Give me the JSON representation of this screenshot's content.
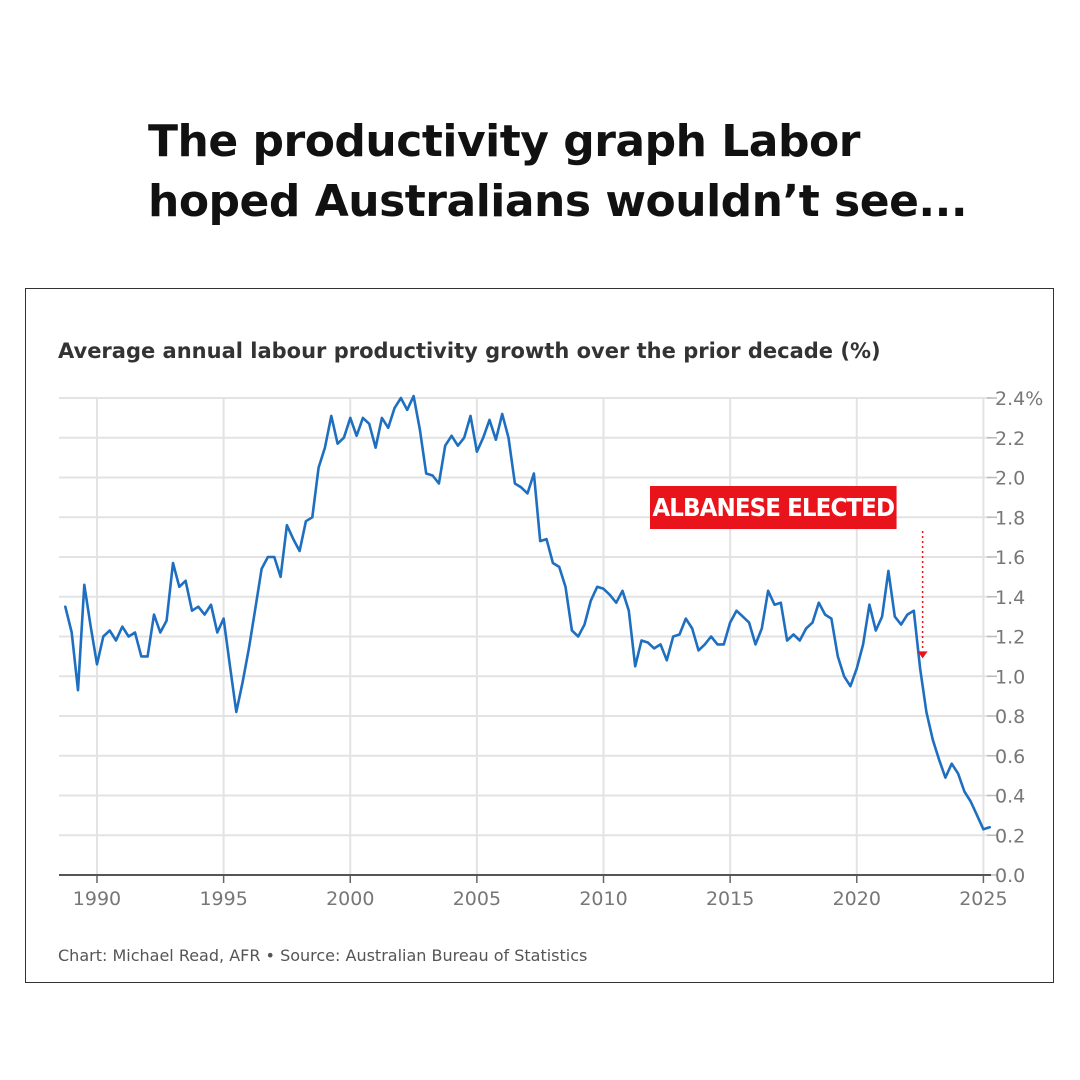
{
  "headline": {
    "line1": "The productivity graph Labor",
    "line2": "hoped Australians wouldn’t see..."
  },
  "colors": {
    "line": "#1f6fc0",
    "annotation": "#e8131b",
    "grid": "#e3e3e3",
    "tick_text": "#777777"
  },
  "chart_data": {
    "type": "line",
    "title": "Average annual labour productivity growth over the prior decade (%)",
    "source": "Chart: Michael Read, AFR • Source: Australian Bureau of Statistics",
    "xlim": [
      1988.5,
      2025.3
    ],
    "ylim": [
      0,
      2.4
    ],
    "x_ticks": [
      1990,
      1995,
      2000,
      2005,
      2010,
      2015,
      2020,
      2025
    ],
    "y_ticks": [
      0,
      0.2,
      0.4,
      0.6,
      0.8,
      1.0,
      1.2,
      1.4,
      1.6,
      1.8,
      2.0,
      2.2,
      2.4
    ],
    "y_tick_labels": [
      "0.0",
      "0.2",
      "0.4",
      "0.6",
      "0.8",
      "1.0",
      "1.2",
      "1.4",
      "1.6",
      "1.8",
      "2.0",
      "2.2",
      "2.4%"
    ],
    "grid": true,
    "y_axis_side": "right",
    "annotation": {
      "label": "ALBANESE ELECTED",
      "x": 2022.6,
      "y": 1.1
    },
    "series": [
      {
        "x": [
          1988.75,
          1989.0,
          1989.25,
          1989.5,
          1989.75,
          1990.0,
          1990.25,
          1990.5,
          1990.75,
          1991.0,
          1991.25,
          1991.5,
          1991.75,
          1992.0,
          1992.25,
          1992.5,
          1992.75,
          1993.0,
          1993.25,
          1993.5,
          1993.75,
          1994.0,
          1994.25,
          1994.5,
          1994.75,
          1995.0,
          1995.25,
          1995.5,
          1995.75,
          1996.0,
          1996.25,
          1996.5,
          1996.75,
          1997.0,
          1997.25,
          1997.5,
          1997.75,
          1998.0,
          1998.25,
          1998.5,
          1998.75,
          1999.0,
          1999.25,
          1999.5,
          1999.75,
          2000.0,
          2000.25,
          2000.5,
          2000.75,
          2001.0,
          2001.25,
          2001.5,
          2001.75,
          2002.0,
          2002.25,
          2002.5,
          2002.75,
          2003.0,
          2003.25,
          2003.5,
          2003.75,
          2004.0,
          2004.25,
          2004.5,
          2004.75,
          2005.0,
          2005.25,
          2005.5,
          2005.75,
          2006.0,
          2006.25,
          2006.5,
          2006.75,
          2007.0,
          2007.25,
          2007.5,
          2007.75,
          2008.0,
          2008.25,
          2008.5,
          2008.75,
          2009.0,
          2009.25,
          2009.5,
          2009.75,
          2010.0,
          2010.25,
          2010.5,
          2010.75,
          2011.0,
          2011.25,
          2011.5,
          2011.75,
          2012.0,
          2012.25,
          2012.5,
          2012.75,
          2013.0,
          2013.25,
          2013.5,
          2013.75,
          2014.0,
          2014.25,
          2014.5,
          2014.75,
          2015.0,
          2015.25,
          2015.5,
          2015.75,
          2016.0,
          2016.25,
          2016.5,
          2016.75,
          2017.0,
          2017.25,
          2017.5,
          2017.75,
          2018.0,
          2018.25,
          2018.5,
          2018.75,
          2019.0,
          2019.25,
          2019.5,
          2019.75,
          2020.0,
          2020.25,
          2020.5,
          2020.75,
          2021.0,
          2021.25,
          2021.5,
          2021.75,
          2022.0,
          2022.25,
          2022.5,
          2022.75,
          2023.0,
          2023.25,
          2023.5,
          2023.75,
          2024.0,
          2024.25,
          2024.5,
          2024.75,
          2025.0,
          2025.25
        ],
        "y": [
          1.35,
          1.22,
          0.93,
          1.46,
          1.25,
          1.06,
          1.2,
          1.23,
          1.18,
          1.25,
          1.2,
          1.22,
          1.1,
          1.1,
          1.31,
          1.22,
          1.28,
          1.57,
          1.45,
          1.48,
          1.33,
          1.35,
          1.31,
          1.36,
          1.22,
          1.29,
          1.05,
          0.82,
          0.97,
          1.14,
          1.34,
          1.54,
          1.6,
          1.6,
          1.5,
          1.76,
          1.69,
          1.63,
          1.78,
          1.8,
          2.05,
          2.15,
          2.31,
          2.17,
          2.2,
          2.3,
          2.21,
          2.3,
          2.27,
          2.15,
          2.3,
          2.25,
          2.35,
          2.4,
          2.34,
          2.41,
          2.24,
          2.02,
          2.01,
          1.97,
          2.16,
          2.21,
          2.16,
          2.2,
          2.31,
          2.13,
          2.2,
          2.29,
          2.19,
          2.32,
          2.2,
          1.97,
          1.95,
          1.92,
          2.02,
          1.68,
          1.69,
          1.57,
          1.55,
          1.45,
          1.23,
          1.2,
          1.26,
          1.38,
          1.45,
          1.44,
          1.41,
          1.37,
          1.43,
          1.33,
          1.05,
          1.18,
          1.17,
          1.14,
          1.16,
          1.08,
          1.2,
          1.21,
          1.29,
          1.24,
          1.13,
          1.16,
          1.2,
          1.16,
          1.16,
          1.27,
          1.33,
          1.3,
          1.27,
          1.16,
          1.24,
          1.43,
          1.36,
          1.37,
          1.18,
          1.21,
          1.18,
          1.24,
          1.27,
          1.37,
          1.31,
          1.29,
          1.1,
          1.0,
          0.95,
          1.04,
          1.16,
          1.36,
          1.23,
          1.3,
          1.53,
          1.3,
          1.26,
          1.31,
          1.33,
          1.04,
          0.82,
          0.68,
          0.58,
          0.49,
          0.56,
          0.51,
          0.42,
          0.37,
          0.3,
          0.23,
          0.24
        ]
      }
    ]
  }
}
